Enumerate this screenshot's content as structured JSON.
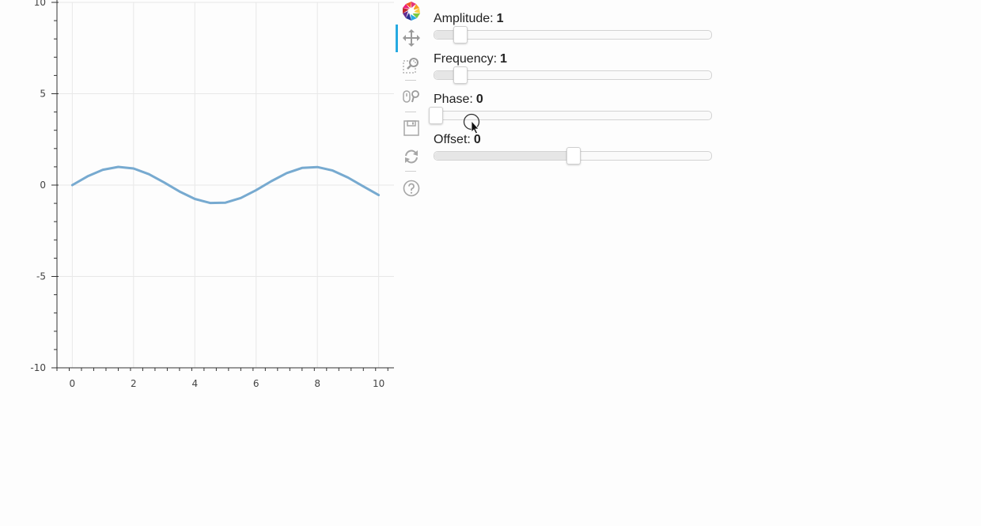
{
  "colors": {
    "line": "#77aad0",
    "axis": "#333333",
    "grid": "#e8e8e8",
    "active_tool": "#26aae1",
    "icon": "#a6a6a6"
  },
  "chart_data": {
    "type": "line",
    "title": "",
    "xlabel": "",
    "ylabel": "",
    "xlim": [
      -0.5,
      10.5
    ],
    "ylim": [
      -10,
      10
    ],
    "x_ticks": [
      0,
      2,
      4,
      6,
      8,
      10
    ],
    "x_tick_labels": [
      "0",
      "2",
      "4",
      "6",
      "8",
      "10"
    ],
    "y_ticks": [
      -10,
      -5,
      0,
      5,
      10
    ],
    "y_tick_labels": [
      "-10",
      "-5",
      "0",
      "5",
      "10"
    ],
    "grid": true,
    "series": [
      {
        "function": "sin",
        "x": [
          0,
          0.5,
          1,
          1.5,
          2,
          2.5,
          3,
          3.5,
          4,
          4.5,
          5,
          5.5,
          6,
          6.5,
          7,
          7.5,
          8,
          8.5,
          9,
          9.5,
          10
        ],
        "y": [
          0,
          0.479,
          0.841,
          0.997,
          0.909,
          0.598,
          0.141,
          -0.351,
          -0.757,
          -0.978,
          -0.959,
          -0.706,
          -0.279,
          0.215,
          0.657,
          0.938,
          0.989,
          0.798,
          0.412,
          -0.075,
          -0.544
        ]
      }
    ]
  },
  "toolbar": {
    "tools": [
      {
        "name": "bokeh-logo-icon",
        "active": false
      },
      {
        "name": "pan-icon",
        "active": true
      },
      {
        "name": "box-zoom-icon",
        "active": false
      },
      {
        "name": "wheel-zoom-icon",
        "active": false
      },
      {
        "name": "save-icon",
        "active": false
      },
      {
        "name": "reset-icon",
        "active": false
      },
      {
        "name": "help-icon",
        "active": false
      }
    ]
  },
  "sliders": [
    {
      "id": "amplitude",
      "label": "Amplitude:",
      "value_text": "1",
      "value": 1,
      "min": 0.1,
      "max": 10
    },
    {
      "id": "frequency",
      "label": "Frequency:",
      "value_text": "1",
      "value": 1,
      "min": 0.1,
      "max": 10
    },
    {
      "id": "phase",
      "label": "Phase:",
      "value_text": "0",
      "value": 0,
      "min": 0,
      "max": 6.28
    },
    {
      "id": "offset",
      "label": "Offset:",
      "value_text": "0",
      "value": 0,
      "min": -5,
      "max": 5
    }
  ]
}
